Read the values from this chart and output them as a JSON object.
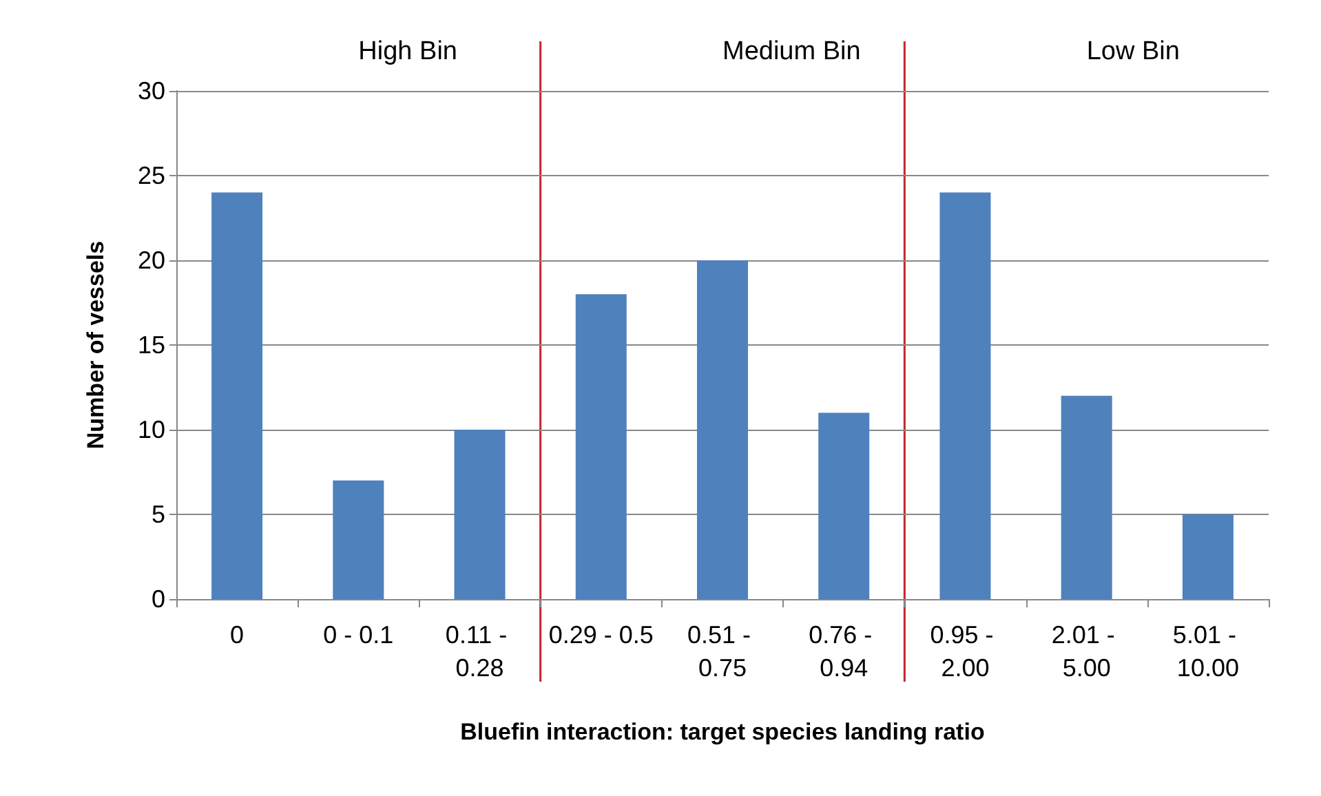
{
  "chart_data": {
    "type": "bar",
    "xlabel": "Bluefin interaction: target species landing ratio",
    "ylabel": "Number of vessels",
    "categories": [
      "0",
      "0 - 0.1",
      "0.11 - 0.28",
      "0.29 - 0.5",
      "0.51 - 0.75",
      "0.76 - 0.94",
      "0.95 - 2.00",
      "2.01 - 5.00",
      "5.01 - 10.00"
    ],
    "values": [
      24,
      7,
      10,
      18,
      20,
      11,
      24,
      12,
      5
    ],
    "color": "#4f81bd",
    "ylim": [
      0,
      30
    ],
    "yticks": [
      0,
      5,
      10,
      15,
      20,
      25,
      30
    ],
    "grid": "y",
    "annotations": [
      "High Bin",
      "Medium Bin",
      "Low Bin"
    ]
  }
}
